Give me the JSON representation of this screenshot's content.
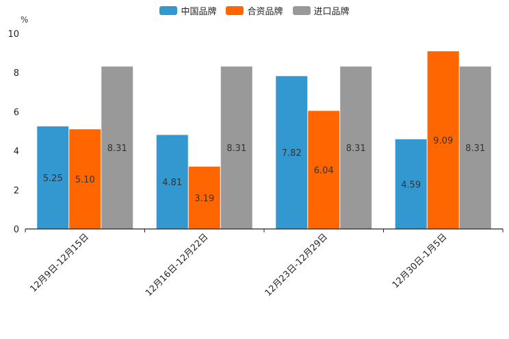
{
  "chart_data": {
    "type": "bar",
    "unit_label": "%",
    "categories": [
      "12月9日-12月15日",
      "12月16日-12月22日",
      "12月23日-12月29日",
      "12月30日-1月5日"
    ],
    "series": [
      {
        "name": "中国品牌",
        "color": "#3498d0",
        "values": [
          5.25,
          4.81,
          7.82,
          4.59
        ],
        "labels": [
          "5.25",
          "4.81",
          "7.82",
          "4.59"
        ]
      },
      {
        "name": "合资品牌",
        "color": "#ff6600",
        "values": [
          5.1,
          3.19,
          6.04,
          9.09
        ],
        "labels": [
          "5.10",
          "3.19",
          "6.04",
          "9.09"
        ]
      },
      {
        "name": "进口品牌",
        "color": "#999999",
        "values": [
          8.31,
          8.31,
          8.31,
          8.31
        ],
        "labels": [
          "8.31",
          "8.31",
          "8.31",
          "8.31"
        ]
      }
    ],
    "ylim": [
      0,
      10
    ],
    "yticks": [
      0,
      2,
      4,
      6,
      8,
      10
    ],
    "ytick_labels": [
      "0",
      "2",
      "4",
      "6",
      "8",
      "10"
    ],
    "xlabel": "",
    "ylabel": "",
    "legend_position": "top-center",
    "grid": false
  }
}
